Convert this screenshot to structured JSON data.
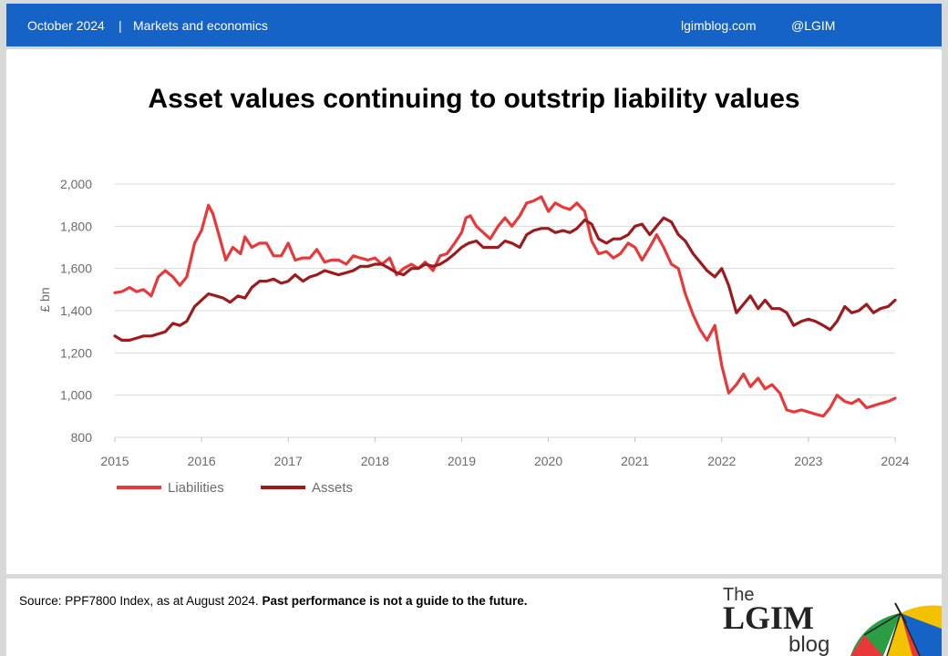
{
  "header": {
    "date": "October 2024",
    "separator": "|",
    "category": "Markets and economics",
    "site": "lgimblog.com",
    "handle": "@LGIM"
  },
  "footer": {
    "source_text": "Source: PPF7800 Index,  as at August 2024.",
    "disclaimer": "Past performance is not a  guide to the future.",
    "logo": {
      "the": "The",
      "name": "LGIM",
      "blog": "blog"
    }
  },
  "colors": {
    "header_bg": "#1563c7",
    "liabilities": "#e8393a",
    "assets": "#9b1c1f",
    "grid": "#d9d9d9",
    "axis_text": "#6b6b6b"
  },
  "chart_data": {
    "type": "line",
    "title": "Asset values continuing to outstrip liability values",
    "ylabel": "£ bn",
    "xlabel": "",
    "ylim": [
      800,
      2000
    ],
    "xlim": [
      2015,
      2024
    ],
    "yticks": [
      800,
      1000,
      1200,
      1400,
      1600,
      1800,
      2000
    ],
    "ytick_labels": [
      "800",
      "1,000",
      "1,200",
      "1,400",
      "1,600",
      "1,800",
      "2,000"
    ],
    "xticks": [
      2015,
      2016,
      2017,
      2018,
      2019,
      2020,
      2021,
      2022,
      2023,
      2024
    ],
    "xtick_labels": [
      "2015",
      "2016",
      "2017",
      "2018",
      "2019",
      "2020",
      "2021",
      "2022",
      "2023",
      "2024"
    ],
    "grid": "horizontal",
    "legend_position": "bottom-left",
    "series": [
      {
        "name": "Liabilities",
        "color": "#e8393a",
        "x": [
          2015.0,
          2015.08,
          2015.17,
          2015.25,
          2015.33,
          2015.42,
          2015.5,
          2015.58,
          2015.67,
          2015.75,
          2015.83,
          2015.92,
          2016.0,
          2016.08,
          2016.13,
          2016.2,
          2016.28,
          2016.36,
          2016.45,
          2016.5,
          2016.58,
          2016.67,
          2016.75,
          2016.83,
          2016.92,
          2017.0,
          2017.08,
          2017.17,
          2017.25,
          2017.33,
          2017.42,
          2017.5,
          2017.58,
          2017.67,
          2017.75,
          2017.83,
          2017.92,
          2018.0,
          2018.08,
          2018.17,
          2018.25,
          2018.33,
          2018.42,
          2018.5,
          2018.58,
          2018.67,
          2018.75,
          2018.83,
          2018.92,
          2019.0,
          2019.05,
          2019.1,
          2019.17,
          2019.25,
          2019.33,
          2019.42,
          2019.5,
          2019.58,
          2019.67,
          2019.75,
          2019.83,
          2019.92,
          2020.0,
          2020.08,
          2020.17,
          2020.25,
          2020.33,
          2020.42,
          2020.5,
          2020.58,
          2020.67,
          2020.75,
          2020.83,
          2020.92,
          2021.0,
          2021.08,
          2021.17,
          2021.25,
          2021.33,
          2021.42,
          2021.5,
          2021.58,
          2021.67,
          2021.75,
          2021.83,
          2021.92,
          2022.0,
          2022.08,
          2022.17,
          2022.25,
          2022.33,
          2022.42,
          2022.5,
          2022.58,
          2022.67,
          2022.75,
          2022.83,
          2022.92,
          2023.0,
          2023.08,
          2023.17,
          2023.25,
          2023.33,
          2023.42,
          2023.5,
          2023.58,
          2023.67,
          2023.75,
          2023.83,
          2023.92,
          2024.0
        ],
        "values": [
          1485,
          1490,
          1510,
          1490,
          1500,
          1470,
          1560,
          1590,
          1560,
          1520,
          1560,
          1720,
          1780,
          1900,
          1860,
          1760,
          1640,
          1700,
          1670,
          1750,
          1700,
          1720,
          1720,
          1660,
          1660,
          1720,
          1640,
          1650,
          1650,
          1690,
          1630,
          1640,
          1640,
          1620,
          1660,
          1650,
          1640,
          1650,
          1620,
          1650,
          1570,
          1600,
          1620,
          1600,
          1630,
          1590,
          1660,
          1670,
          1720,
          1770,
          1840,
          1850,
          1800,
          1770,
          1740,
          1800,
          1840,
          1800,
          1850,
          1910,
          1920,
          1940,
          1870,
          1910,
          1890,
          1880,
          1910,
          1870,
          1730,
          1670,
          1680,
          1650,
          1670,
          1720,
          1700,
          1640,
          1700,
          1760,
          1700,
          1620,
          1600,
          1480,
          1380,
          1310,
          1260,
          1330,
          1140,
          1010,
          1050,
          1100,
          1040,
          1080,
          1030,
          1050,
          1010,
          930,
          920,
          930,
          920,
          910,
          900,
          940,
          1000,
          970,
          960,
          980,
          940,
          950,
          960,
          970,
          985
        ]
      },
      {
        "name": "Assets",
        "color": "#9b1c1f",
        "x": [
          2015.0,
          2015.08,
          2015.17,
          2015.25,
          2015.33,
          2015.42,
          2015.5,
          2015.58,
          2015.67,
          2015.75,
          2015.83,
          2015.92,
          2016.0,
          2016.08,
          2016.17,
          2016.25,
          2016.33,
          2016.42,
          2016.5,
          2016.58,
          2016.67,
          2016.75,
          2016.83,
          2016.92,
          2017.0,
          2017.08,
          2017.17,
          2017.25,
          2017.33,
          2017.42,
          2017.5,
          2017.58,
          2017.67,
          2017.75,
          2017.83,
          2017.92,
          2018.0,
          2018.08,
          2018.17,
          2018.25,
          2018.33,
          2018.42,
          2018.5,
          2018.58,
          2018.67,
          2018.75,
          2018.83,
          2018.92,
          2019.0,
          2019.08,
          2019.17,
          2019.25,
          2019.33,
          2019.42,
          2019.5,
          2019.58,
          2019.67,
          2019.75,
          2019.83,
          2019.92,
          2020.0,
          2020.08,
          2020.17,
          2020.25,
          2020.33,
          2020.42,
          2020.5,
          2020.58,
          2020.67,
          2020.75,
          2020.83,
          2020.92,
          2021.0,
          2021.08,
          2021.17,
          2021.25,
          2021.33,
          2021.42,
          2021.5,
          2021.58,
          2021.67,
          2021.75,
          2021.83,
          2021.92,
          2022.0,
          2022.08,
          2022.17,
          2022.25,
          2022.33,
          2022.42,
          2022.5,
          2022.58,
          2022.67,
          2022.75,
          2022.83,
          2022.92,
          2023.0,
          2023.08,
          2023.17,
          2023.25,
          2023.33,
          2023.42,
          2023.5,
          2023.58,
          2023.67,
          2023.75,
          2023.83,
          2023.92,
          2024.0
        ],
        "values": [
          1280,
          1260,
          1260,
          1270,
          1280,
          1280,
          1290,
          1300,
          1340,
          1330,
          1350,
          1420,
          1450,
          1480,
          1470,
          1460,
          1440,
          1470,
          1460,
          1510,
          1540,
          1540,
          1550,
          1530,
          1540,
          1570,
          1540,
          1560,
          1570,
          1590,
          1580,
          1570,
          1580,
          1590,
          1610,
          1610,
          1620,
          1620,
          1600,
          1580,
          1570,
          1600,
          1600,
          1620,
          1610,
          1620,
          1640,
          1670,
          1700,
          1720,
          1730,
          1700,
          1700,
          1700,
          1730,
          1720,
          1700,
          1760,
          1780,
          1790,
          1790,
          1770,
          1780,
          1770,
          1790,
          1830,
          1810,
          1740,
          1720,
          1740,
          1740,
          1760,
          1800,
          1810,
          1760,
          1800,
          1840,
          1820,
          1760,
          1730,
          1670,
          1630,
          1590,
          1560,
          1600,
          1520,
          1390,
          1430,
          1470,
          1410,
          1450,
          1410,
          1410,
          1390,
          1330,
          1350,
          1360,
          1350,
          1330,
          1310,
          1350,
          1420,
          1390,
          1400,
          1430,
          1390,
          1410,
          1420,
          1450
        ]
      }
    ]
  }
}
